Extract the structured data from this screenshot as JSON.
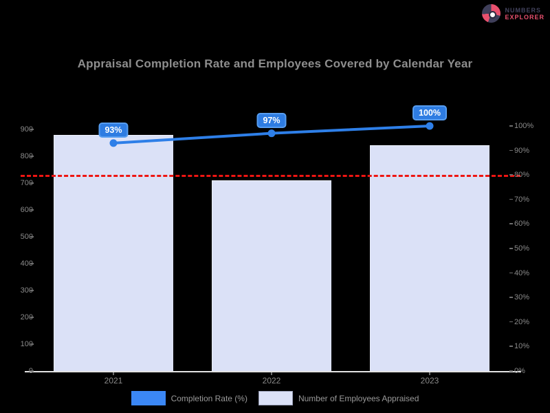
{
  "brand": {
    "line1": "NUMBERS",
    "line2": "EXPLORER"
  },
  "title": "Appraisal Completion Rate and Employees Covered by Calendar Year",
  "colors": {
    "background": "#000000",
    "bar_fill": "#dbe1f7",
    "line_blue": "#2e7fe8",
    "label_box_blue": "#2e7ce2",
    "threshold_red": "#ee1512",
    "axis_text_gray": "#8a8a8a",
    "baseline_gray": "#e3e3e3"
  },
  "chart_data": {
    "type": "bar",
    "title": "Appraisal Completion Rate and Employees Covered by Calendar Year",
    "categories": [
      "2021",
      "2022",
      "2023"
    ],
    "series": [
      {
        "name": "Number of Employees Appraised",
        "type": "bar",
        "axis": "left",
        "color": "#dbe1f7",
        "values": [
          880,
          710,
          842
        ]
      },
      {
        "name": "Completion Rate (%)",
        "type": "line",
        "axis": "right",
        "color": "#2e7fe8",
        "values": [
          93,
          97,
          100
        ],
        "point_labels": [
          "93%",
          "97%",
          "100%"
        ]
      }
    ],
    "left_axis": {
      "min": 0,
      "max": 900,
      "step": 100,
      "tick_labels": [
        "900",
        "800",
        "700",
        "600",
        "500",
        "400",
        "300",
        "200",
        "100",
        "0"
      ]
    },
    "right_axis": {
      "min": 0,
      "max": 100,
      "step": 10,
      "tick_labels": [
        "100%",
        "90%",
        "80%",
        "70%",
        "60%",
        "50%",
        "40%",
        "30%",
        "20%",
        "10%",
        "0%"
      ]
    },
    "threshold": {
      "value": 80,
      "axis": "right",
      "style": "dashed",
      "color": "#ee1512"
    },
    "legend_position": "bottom",
    "grid": false,
    "xlabel": "",
    "ylabel": ""
  },
  "legend": {
    "items": [
      {
        "label": "Completion Rate (%)",
        "color": "#3b87f5",
        "border": "none"
      },
      {
        "label": "Number of Employees Appraised",
        "color": "#dbe1f7",
        "border": "#9aa0b8"
      }
    ]
  }
}
